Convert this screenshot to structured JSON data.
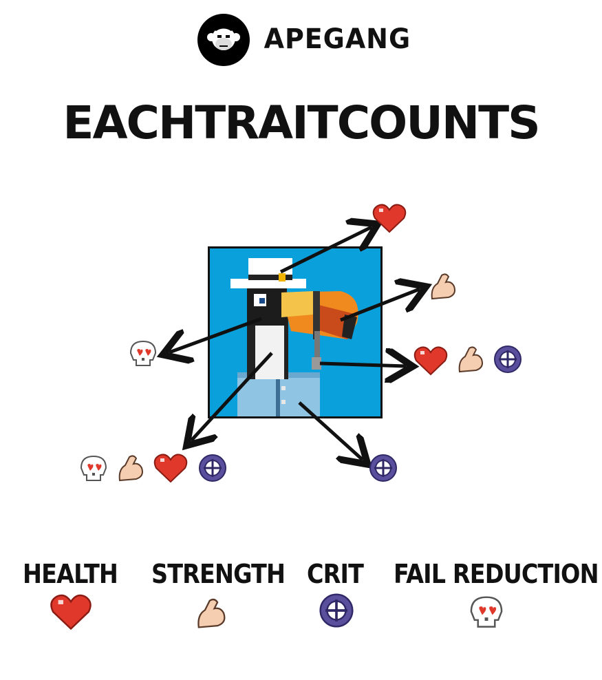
{
  "header": {
    "brand": "APEGANG",
    "headline": "EACHTRAITCOUNTS"
  },
  "legend": [
    {
      "label": "HEALTH",
      "icon": "heart-icon"
    },
    {
      "label": "STRENGTH",
      "icon": "flexed-arm-icon"
    },
    {
      "label": "CRIT",
      "icon": "crosshair-icon"
    },
    {
      "label": "FAIL REDUCTION",
      "icon": "skull-heart-eyes-icon"
    }
  ],
  "colors": {
    "portrait_background": "#0aa0dc",
    "heart": "#e0392b",
    "skin": "#f5cdb0",
    "crit": "#5a4f9c",
    "skull": "#ffffff"
  }
}
